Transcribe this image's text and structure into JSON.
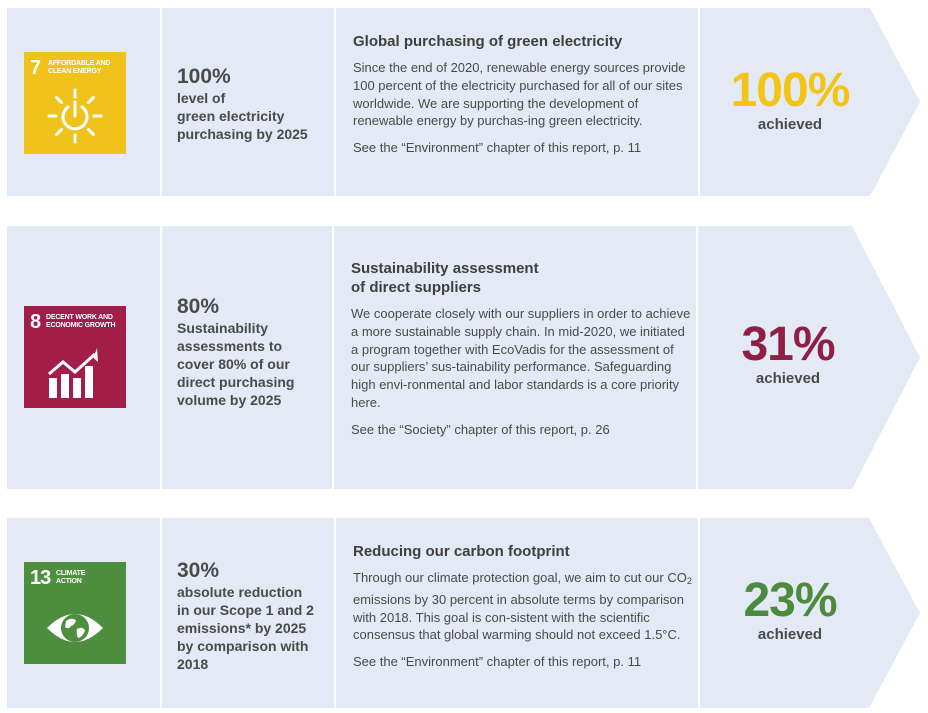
{
  "colors": {
    "panel": "#e3eaf5",
    "divider": "#ffffff",
    "text": "#4a4a4a",
    "sdg7": "#f0c21c",
    "sdg8": "#a31d49",
    "sdg13": "#4e8e3f",
    "achieved_100": "#f3c418",
    "achieved_31": "#8f1f44",
    "achieved_23": "#4d8a3e"
  },
  "rows": [
    {
      "sdg": {
        "number": "7",
        "title": "AFFORDABLE AND\nCLEAN ENERGY",
        "icon": "sun-power-icon"
      },
      "goal": {
        "percent": "100%",
        "text": "level of\ngreen electricity\npurchasing by 2025"
      },
      "heading": "Global purchasing of green electricity",
      "paragraph": "Since the end of 2020, renewable energy sources provide 100 percent of the electricity purchased for all of our sites worldwide. We are supporting the development of renewable energy by purchas-ing green electricity.",
      "reference": "See the “Environment” chapter of this report, p. 11",
      "result": {
        "percent": "100%",
        "label": "achieved"
      }
    },
    {
      "sdg": {
        "number": "8",
        "title": "DECENT WORK AND\nECONOMIC GROWTH",
        "icon": "growth-chart-icon"
      },
      "goal": {
        "percent": "80%",
        "text": "Sustainability\nassessments to\ncover 80% of our\ndirect purchasing\nvolume by 2025"
      },
      "heading": "Sustainability assessment\nof direct suppliers",
      "paragraph": "We cooperate closely with our suppliers in order to achieve a more sustainable supply chain. In mid-2020, we initiated a program together with EcoVadis for the assessment of our suppliers’ sus-tainability performance. Safeguarding high envi-ronmental and labor standards is a core priority here.",
      "reference": "See the “Society” chapter of this report, p. 26",
      "result": {
        "percent": "31%",
        "label": "achieved"
      }
    },
    {
      "sdg": {
        "number": "13",
        "title": "CLIMATE\nACTION",
        "icon": "earth-eye-icon"
      },
      "goal": {
        "percent": "30%",
        "text": "absolute reduction\nin our Scope 1 and 2\nemissions* by 2025\nby comparison with\n2018"
      },
      "heading": "Reducing our carbon footprint",
      "paragraph_before": "Through our climate protection goal, we aim to cut our CO",
      "paragraph_sub": "2",
      "paragraph_after": " emissions by 30 percent in absolute terms by comparison with 2018. This goal is con-sistent with the scientific consensus that global warming should not exceed 1.5°C.",
      "reference": "See the “Environment” chapter of this report, p. 11",
      "result": {
        "percent": "23%",
        "label": "achieved"
      }
    }
  ]
}
